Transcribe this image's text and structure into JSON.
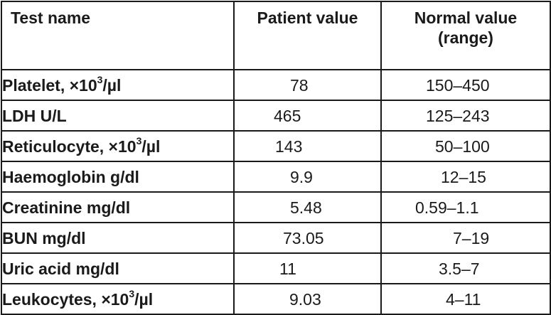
{
  "table": {
    "headers": {
      "test_name": "Test name",
      "patient_value": "Patient value",
      "normal_value_line1": "Normal value",
      "normal_value_line2": "(range)"
    },
    "rows": [
      {
        "name": "Platelet, ×10",
        "sup": "3",
        "unit": "/µl",
        "patient": "78",
        "normal": "150–450"
      },
      {
        "name": "LDH U/L",
        "sup": "",
        "unit": "",
        "patient": "465",
        "normal": "125–243"
      },
      {
        "name": "Reticulocyte, ×10",
        "sup": "3",
        "unit": "/µl",
        "patient": "143",
        "normal": "50–100"
      },
      {
        "name": "Haemoglobin g/dl",
        "sup": "",
        "unit": "",
        "patient": "9.9",
        "normal": "12–15"
      },
      {
        "name": "Creatinine mg/dl",
        "sup": "",
        "unit": "",
        "patient": "5.48",
        "normal": "0.59–1.1"
      },
      {
        "name": "BUN mg/dl",
        "sup": "",
        "unit": "",
        "patient": "73.05",
        "normal": "7–19"
      },
      {
        "name": "Uric acid mg/dl",
        "sup": "",
        "unit": "",
        "patient": "11",
        "normal": "3.5–7"
      },
      {
        "name": "Leukocytes, ×10",
        "sup": "3",
        "unit": "/µl",
        "patient": "9.03",
        "normal": "4–11"
      }
    ]
  }
}
